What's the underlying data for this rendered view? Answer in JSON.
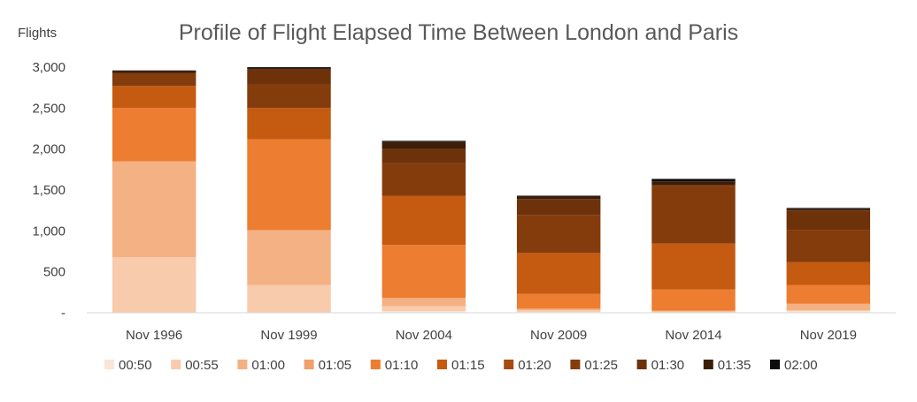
{
  "chart_data": {
    "type": "bar",
    "stacked": true,
    "title": "Profile of Flight Elapsed Time Between London and Paris",
    "ylabel": "Flights",
    "xlabel": "",
    "ylim": [
      0,
      3000
    ],
    "yticks": [
      {
        "value": 0,
        "label": "-"
      },
      {
        "value": 500,
        "label": "500"
      },
      {
        "value": 1000,
        "label": "1,000"
      },
      {
        "value": 1500,
        "label": "1,500"
      },
      {
        "value": 2000,
        "label": "2,000"
      },
      {
        "value": 2500,
        "label": "2,500"
      },
      {
        "value": 3000,
        "label": "3,000"
      }
    ],
    "grid": false,
    "legend_position": "bottom",
    "categories": [
      "Nov 1996",
      "Nov 1999",
      "Nov 2004",
      "Nov 2009",
      "Nov 2014",
      "Nov 2019"
    ],
    "series": [
      {
        "name": "00:50",
        "color": "#fbe5d6",
        "values": [
          0,
          0,
          20,
          10,
          5,
          20
        ]
      },
      {
        "name": "00:55",
        "color": "#f8cbad",
        "values": [
          680,
          340,
          60,
          20,
          10,
          10
        ]
      },
      {
        "name": "01:00",
        "color": "#f4b183",
        "values": [
          1170,
          670,
          100,
          20,
          10,
          80
        ]
      },
      {
        "name": "01:05",
        "color": "#f0a06a",
        "values": [
          0,
          0,
          0,
          0,
          0,
          0
        ]
      },
      {
        "name": "01:10",
        "color": "#ed7d31",
        "values": [
          650,
          1110,
          650,
          180,
          260,
          230
        ]
      },
      {
        "name": "01:15",
        "color": "#c55a11",
        "values": [
          270,
          380,
          600,
          500,
          560,
          280
        ]
      },
      {
        "name": "01:20",
        "color": "#a64a10",
        "values": [
          0,
          0,
          0,
          0,
          0,
          0
        ]
      },
      {
        "name": "01:25",
        "color": "#843c0c",
        "values": [
          160,
          290,
          400,
          460,
          700,
          390
        ]
      },
      {
        "name": "01:30",
        "color": "#6e320a",
        "values": [
          0,
          180,
          170,
          200,
          20,
          240
        ]
      },
      {
        "name": "01:35",
        "color": "#3b1d08",
        "values": [
          20,
          20,
          90,
          30,
          40,
          20
        ]
      },
      {
        "name": "02:00",
        "color": "#0d0d0d",
        "values": [
          10,
          10,
          10,
          10,
          30,
          10
        ]
      }
    ]
  }
}
